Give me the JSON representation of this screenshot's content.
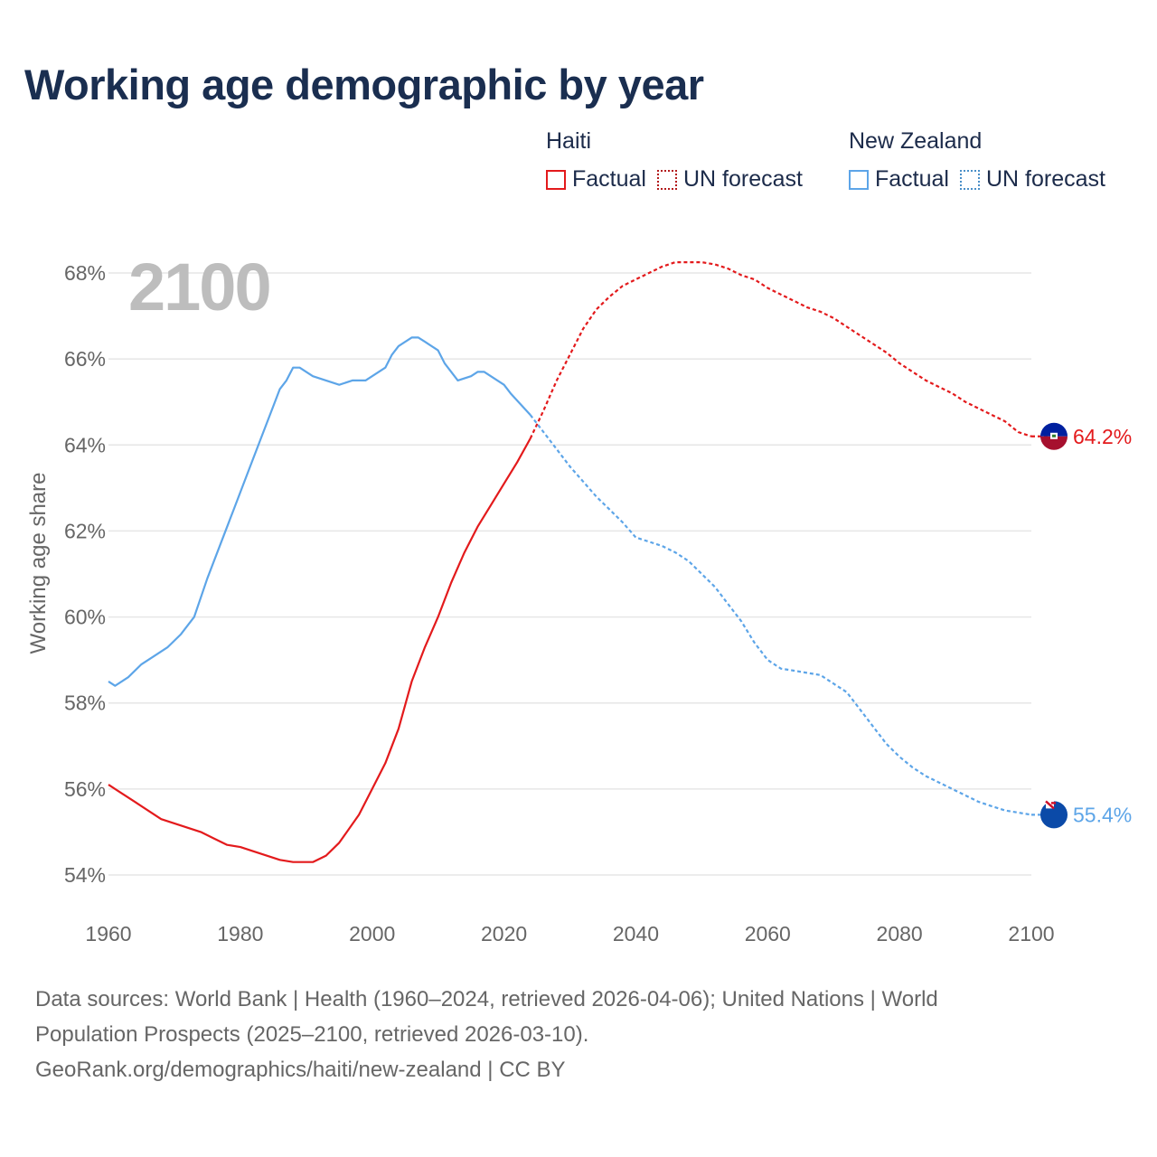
{
  "title": "Working age demographic by year",
  "legend": {
    "groups": [
      {
        "country": "Haiti",
        "color": "#e31a1c",
        "factual_label": "Factual",
        "forecast_label": "UN forecast"
      },
      {
        "country": "New Zealand",
        "color": "#5da5e8",
        "factual_label": "Factual",
        "forecast_label": "UN forecast"
      }
    ]
  },
  "year_watermark": "2100",
  "sources": {
    "line1": "Data sources: World Bank | Health (1960–2024, retrieved 2026-04-06); United Nations | World",
    "line2": "Population Prospects (2025–2100, retrieved 2026-03-10).",
    "line3": "GeoRank.org/demographics/haiti/new-zealand | CC BY"
  },
  "chart_data": {
    "type": "line",
    "title": "Working age demographic by year",
    "xlabel": "",
    "ylabel": "Working age share",
    "xlim": [
      1960,
      2100
    ],
    "ylim": [
      54,
      68
    ],
    "x_ticks": [
      1960,
      1980,
      2000,
      2020,
      2040,
      2060,
      2080,
      2100
    ],
    "y_ticks": [
      54,
      56,
      58,
      60,
      62,
      64,
      66,
      68
    ],
    "y_tick_labels": [
      "54%",
      "56%",
      "58%",
      "60%",
      "62%",
      "64%",
      "66%",
      "68%"
    ],
    "x_tick_labels": [
      "1960",
      "1980",
      "2000",
      "2020",
      "2040",
      "2060",
      "2080",
      "2100"
    ],
    "grid": true,
    "factual_range": [
      1960,
      2024
    ],
    "forecast_range": [
      2024,
      2100
    ],
    "series": [
      {
        "name": "Haiti",
        "color": "#e31a1c",
        "end_label": "64.2%",
        "x": [
          1960,
          1964,
          1968,
          1970,
          1972,
          1974,
          1976,
          1978,
          1980,
          1982,
          1984,
          1986,
          1988,
          1990,
          1991,
          1993,
          1995,
          1998,
          2000,
          2002,
          2004,
          2006,
          2008,
          2010,
          2012,
          2014,
          2016,
          2018,
          2020,
          2022,
          2024,
          2026,
          2028,
          2030,
          2032,
          2034,
          2036,
          2038,
          2040,
          2042,
          2044,
          2046,
          2048,
          2050,
          2052,
          2054,
          2056,
          2058,
          2060,
          2062,
          2064,
          2066,
          2068,
          2070,
          2072,
          2074,
          2076,
          2078,
          2080,
          2082,
          2084,
          2086,
          2088,
          2090,
          2092,
          2094,
          2096,
          2098,
          2100
        ],
        "y": [
          56.1,
          55.7,
          55.3,
          55.2,
          55.1,
          55.0,
          54.85,
          54.7,
          54.65,
          54.55,
          54.45,
          54.35,
          54.3,
          54.3,
          54.3,
          54.45,
          54.75,
          55.4,
          56.0,
          56.6,
          57.4,
          58.5,
          59.3,
          60.0,
          60.8,
          61.5,
          62.1,
          62.6,
          63.1,
          63.6,
          64.15,
          64.8,
          65.5,
          66.1,
          66.7,
          67.15,
          67.45,
          67.7,
          67.85,
          68.0,
          68.15,
          68.25,
          68.25,
          68.25,
          68.2,
          68.1,
          67.95,
          67.85,
          67.65,
          67.5,
          67.35,
          67.2,
          67.1,
          66.95,
          66.75,
          66.55,
          66.35,
          66.15,
          65.9,
          65.7,
          65.5,
          65.35,
          65.2,
          65.0,
          64.85,
          64.7,
          64.55,
          64.3,
          64.2
        ]
      },
      {
        "name": "New Zealand",
        "color": "#5da5e8",
        "end_label": "55.4%",
        "x": [
          1960,
          1961,
          1963,
          1965,
          1967,
          1969,
          1971,
          1973,
          1975,
          1977,
          1979,
          1981,
          1983,
          1985,
          1986,
          1987,
          1988,
          1989,
          1990,
          1991,
          1993,
          1995,
          1997,
          1999,
          2000,
          2002,
          2003,
          2004,
          2006,
          2007,
          2008,
          2010,
          2011,
          2013,
          2015,
          2016,
          2017,
          2019,
          2020,
          2021,
          2024,
          2026,
          2028,
          2030,
          2032,
          2034,
          2036,
          2038,
          2040,
          2042,
          2044,
          2046,
          2048,
          2050,
          2052,
          2054,
          2056,
          2058,
          2060,
          2062,
          2064,
          2066,
          2068,
          2070,
          2072,
          2074,
          2076,
          2078,
          2080,
          2082,
          2084,
          2086,
          2088,
          2090,
          2092,
          2094,
          2096,
          2098,
          2100
        ],
        "y": [
          58.5,
          58.4,
          58.6,
          58.9,
          59.1,
          59.3,
          59.6,
          60.0,
          60.9,
          61.7,
          62.5,
          63.3,
          64.1,
          64.9,
          65.3,
          65.5,
          65.8,
          65.8,
          65.7,
          65.6,
          65.5,
          65.4,
          65.5,
          65.5,
          65.6,
          65.8,
          66.1,
          66.3,
          66.5,
          66.5,
          66.4,
          66.2,
          65.9,
          65.5,
          65.6,
          65.7,
          65.7,
          65.5,
          65.4,
          65.2,
          64.7,
          64.3,
          63.9,
          63.5,
          63.15,
          62.8,
          62.5,
          62.2,
          61.85,
          61.75,
          61.65,
          61.5,
          61.3,
          61.0,
          60.7,
          60.3,
          59.9,
          59.4,
          59.0,
          58.8,
          58.75,
          58.7,
          58.65,
          58.45,
          58.25,
          57.85,
          57.45,
          57.05,
          56.75,
          56.5,
          56.3,
          56.15,
          56.0,
          55.85,
          55.7,
          55.6,
          55.5,
          55.45,
          55.4
        ]
      }
    ]
  }
}
